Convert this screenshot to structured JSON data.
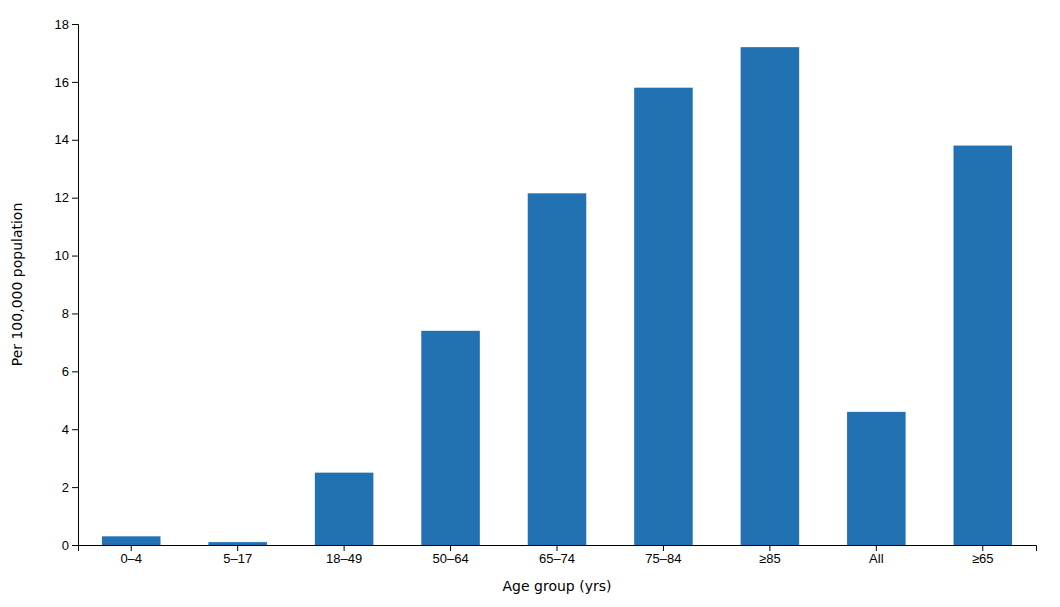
{
  "chart_data": {
    "type": "bar",
    "categories": [
      "0–4",
      "5–17",
      "18–49",
      "50–64",
      "65–74",
      "75–84",
      "≥85",
      "All",
      "≥65"
    ],
    "values": [
      0.3,
      0.1,
      2.5,
      7.4,
      12.15,
      15.8,
      17.2,
      4.6,
      13.8
    ],
    "color": "#2271b3",
    "xlabel": "Age group (yrs)",
    "ylabel": "Per 100,000 population",
    "ylim": [
      0,
      18
    ],
    "yticks": [
      0,
      2,
      4,
      6,
      8,
      10,
      12,
      14,
      16,
      18
    ],
    "grid": false
  }
}
